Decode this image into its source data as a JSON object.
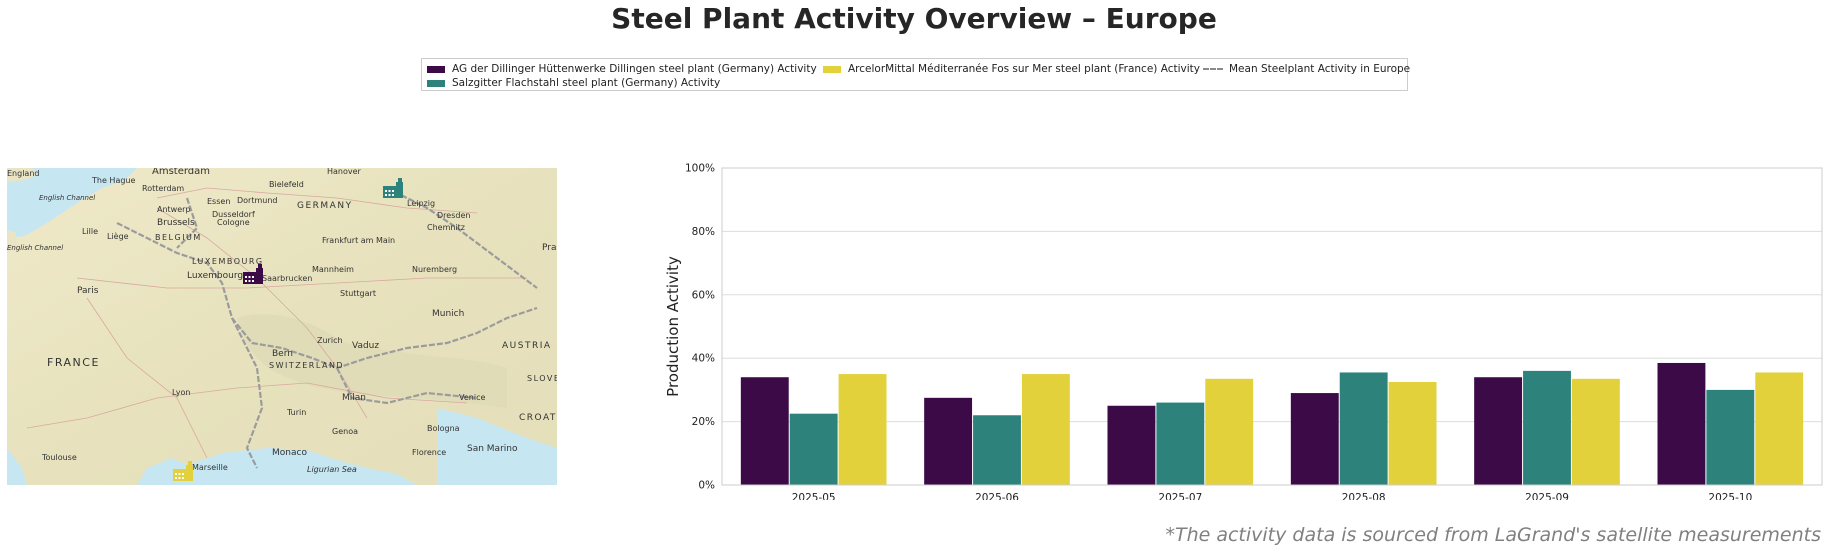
{
  "title": "Steel Plant Activity Overview – Europe",
  "footnote": "*The activity data is sourced from LaGrand's satellite measurements",
  "legend": [
    {
      "label": "AG der Dillinger Hüttenwerke Dillingen steel plant (Germany) Activity",
      "color": "#3b0a47",
      "kind": "bar"
    },
    {
      "label": "ArcelorMittal Méditerranée Fos sur Mer steel plant (France) Activity",
      "color": "#e3d13c",
      "kind": "bar"
    },
    {
      "label": "Mean Steelplant Activity in Europe",
      "color": "#8a8a8a",
      "kind": "dash"
    },
    {
      "label": "Salzgitter Flachstahl steel plant (Germany) Activity",
      "color": "#2d837c",
      "kind": "bar"
    }
  ],
  "map": {
    "labels": [
      "England",
      "Amsterdam",
      "The Hague",
      "Rotterdam",
      "Hanover",
      "Bielefeld",
      "Essen",
      "Dortmund",
      "GERMANY",
      "Leipzig",
      "English Channel",
      "Antwerp",
      "Dusseldorf",
      "Brussels",
      "Cologne",
      "Dresden",
      "Chemnitz",
      "English Channel",
      "Lille",
      "Liège",
      "BELGIUM",
      "LUXEMBOURG",
      "Frankfurt am Main",
      "Prague",
      "Luxembourg",
      "Saarbrucken",
      "Mannheim",
      "Nuremberg",
      "Paris",
      "Stuttgart",
      "Munich",
      "Zurich",
      "Vaduz",
      "AUSTRIA",
      "Bern",
      "FRANCE",
      "SWITZERLAND",
      "SLOVENIA",
      "Lyon",
      "Milan",
      "Venice",
      "CROATIA",
      "Turin",
      "Bologna",
      "Genoa",
      "Monaco",
      "Florence",
      "San Marino",
      "Toulouse",
      "Marseille",
      "Ligurian Sea"
    ],
    "markers": [
      {
        "name": "Salzgitter Flachstahl",
        "color": "#2d837c"
      },
      {
        "name": "AG der Dillinger Hüttenwerke Dillingen",
        "color": "#3b0a47"
      },
      {
        "name": "ArcelorMittal Méditerranée Fos sur Mer",
        "color": "#e3d13c"
      }
    ]
  },
  "chart_data": {
    "type": "bar",
    "categories": [
      "2025-05",
      "2025-06",
      "2025-07",
      "2025-08",
      "2025-09",
      "2025-10"
    ],
    "series": [
      {
        "name": "AG der Dillinger Hüttenwerke Dillingen steel plant (Germany) Activity",
        "color": "#3b0a47",
        "values": [
          34,
          27.5,
          25,
          29,
          34,
          38.5
        ]
      },
      {
        "name": "Salzgitter Flachstahl steel plant (Germany) Activity",
        "color": "#2d837c",
        "values": [
          22.5,
          22,
          26,
          35.5,
          36,
          30
        ]
      },
      {
        "name": "ArcelorMittal Méditerranée Fos sur Mer steel plant (France) Activity",
        "color": "#e3d13c",
        "values": [
          35,
          35,
          33.5,
          32.5,
          33.5,
          35.5
        ]
      }
    ],
    "xlabel": "",
    "ylabel": "Production Activity",
    "ylim": [
      0,
      100
    ],
    "yticks": [
      "0%",
      "20%",
      "40%",
      "60%",
      "80%",
      "100%"
    ],
    "grid": "horizontal"
  }
}
